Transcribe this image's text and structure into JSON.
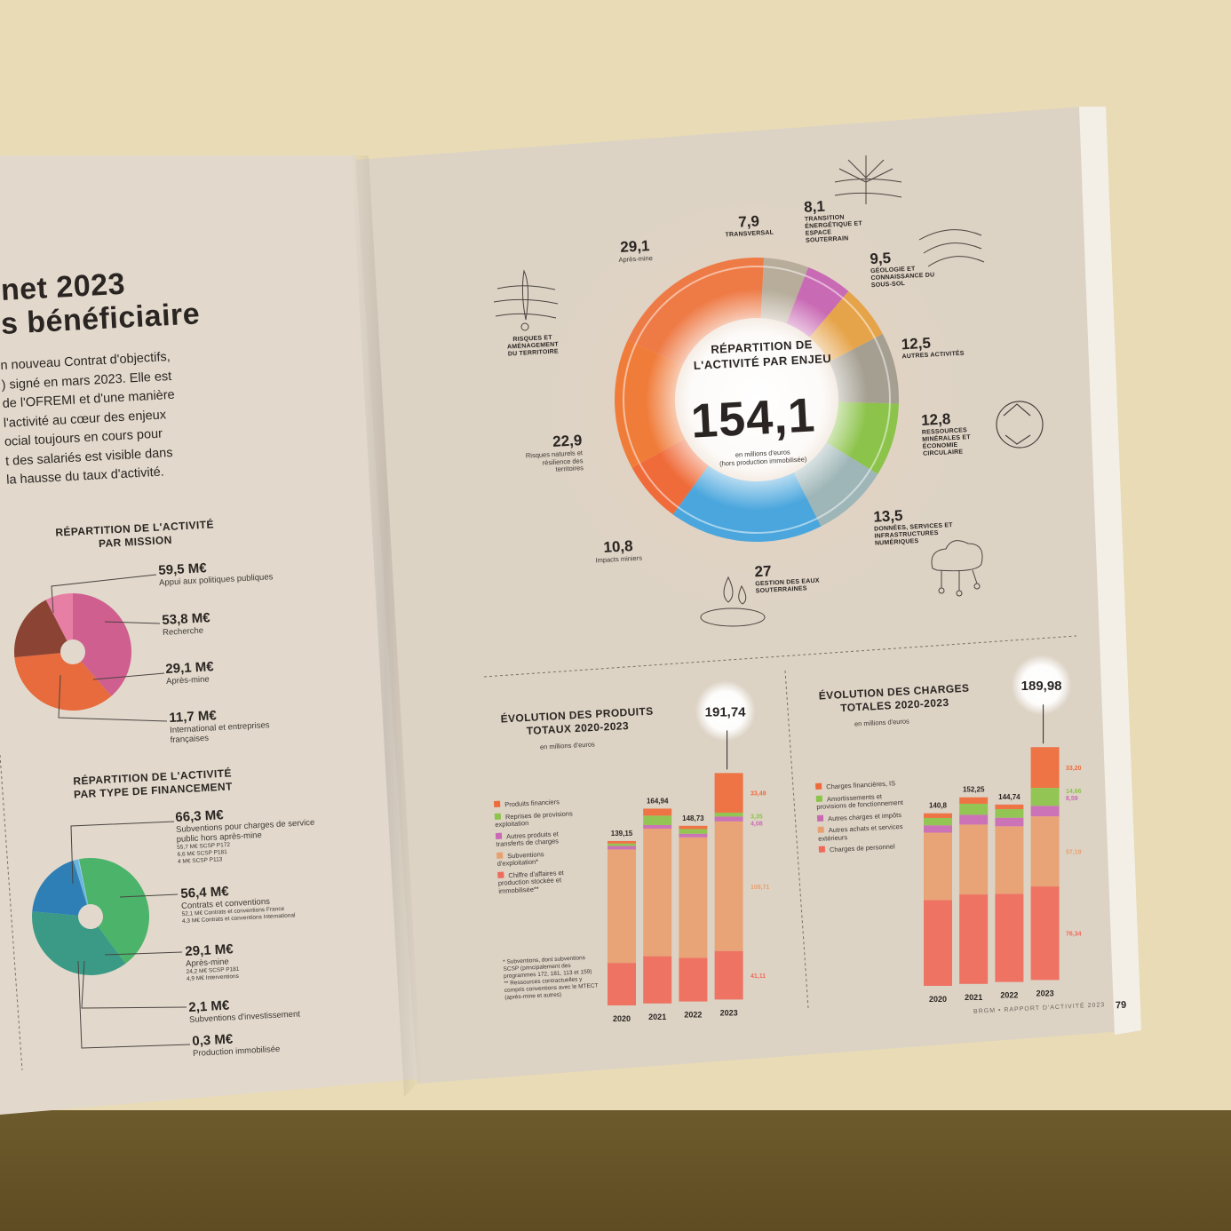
{
  "left_page": {
    "title_line1": "net 2023",
    "title_line2": "s bénéficiaire",
    "paragraph": [
      "n nouveau Contrat d'objectifs,",
      ") signé en mars 2023. Elle est",
      "de l'OFREMI et d'une manière",
      "l'activité au cœur des enjeux",
      "ocial toujours en cours pour",
      "t des salariés est visible dans",
      "la hausse du taux d'activité."
    ],
    "mission": {
      "title": "RÉPARTITION DE L'ACTIVITÉ PAR MISSION",
      "items": [
        {
          "value": "59,5 M€",
          "label": "Appui aux politiques publiques",
          "color": "#cf5f8e"
        },
        {
          "value": "53,8 M€",
          "label": "Recherche",
          "color": "#e76b3c"
        },
        {
          "value": "29,1 M€",
          "label": "Après-mine",
          "color": "#8b4434"
        },
        {
          "value": "11,7 M€",
          "label": "International et entreprises françaises",
          "color": "#e77fa5"
        }
      ]
    },
    "financement": {
      "title": "RÉPARTITION DE L'ACTIVITÉ PAR TYPE DE FINANCEMENT",
      "items": [
        {
          "value": "66,3 M€",
          "label": "Subventions pour charges de service public hors après-mine",
          "details": [
            "55,7 M€ SCSP P172",
            "6,6 M€ SCSP P181",
            "4 M€ SCSP P113"
          ],
          "color": "#4bb36a"
        },
        {
          "value": "56,4 M€",
          "label": "Contrats et conventions",
          "details": [
            "52,1 M€ Contrats et conventions France",
            "4,3 M€ Contrats et conventions International"
          ],
          "color": "#3a9a86"
        },
        {
          "value": "29,1 M€",
          "label": "Après-mine",
          "details": [
            "24,2 M€ SCSP P181",
            "4,9 M€ Interventions"
          ],
          "color": "#2e7fb5"
        },
        {
          "value": "2,1 M€",
          "label": "Subventions d'investissement",
          "details": [],
          "color": "#6ab6e0"
        },
        {
          "value": "0,3 M€",
          "label": "Production immobilisée",
          "details": [],
          "color": "#9fd2ee"
        }
      ]
    }
  },
  "right_page": {
    "donut_title": "RÉPARTITION DE L'ACTIVITÉ PAR ENJEU",
    "donut_total": "154,1",
    "donut_unit": "en millions d'euros",
    "donut_note": "(hors production immobilisée)",
    "segments": [
      {
        "value": "29,1",
        "label": "Après-mine",
        "color": "#ee7a45"
      },
      {
        "value": "7,9",
        "label": "TRANSVERSAL",
        "color": "#b8ad9b"
      },
      {
        "value": "8,1",
        "label": "TRANSITION ÉNERGÉTIQUE ET ESPACE SOUTERRAIN",
        "color": "#c96ab4"
      },
      {
        "value": "9,5",
        "label": "GÉOLOGIE ET CONNAISSANCE DU SOUS-SOL",
        "color": "#e6a44a"
      },
      {
        "value": "12,5",
        "label": "AUTRES ACTIVITÉS",
        "color": "#a59f91"
      },
      {
        "value": "12,8",
        "label": "RESSOURCES MINÉRALES ET ÉCONOMIE CIRCULAIRE",
        "color": "#8cc34a"
      },
      {
        "value": "13,5",
        "label": "DONNÉES, SERVICES ET INFRASTRUCTURES NUMÉRIQUES",
        "color": "#9fb6b8"
      },
      {
        "value": "27",
        "label": "GESTION DES EAUX SOUTERRAINES",
        "color": "#4aa6dd"
      },
      {
        "value": "10,8",
        "label": "Impacts miniers",
        "color": "#ef6b3a"
      },
      {
        "value": "22,9",
        "label": "Risques naturels et résilience des territoires",
        "color": "#f07c3a"
      },
      {
        "value": "",
        "label": "RISQUES ET AMÉNAGEMENT DU TERRITOIRE",
        "color": "#ee7a45"
      }
    ],
    "produits": {
      "title": "ÉVOLUTION DES PRODUITS TOTAUX 2020-2023",
      "unit": "en millions d'euros",
      "highlight": "191,74",
      "legend": [
        {
          "label": "Produits financiers",
          "color": "#ef6a3a"
        },
        {
          "label": "Reprises de provisions exploitation",
          "color": "#8cc34a"
        },
        {
          "label": "Autres produits et transferts de charges",
          "color": "#c96ab4"
        },
        {
          "label": "Subventions d'exploitation*",
          "color": "#e8a070"
        },
        {
          "label": "Chiffre d'affaires et production stockée et immobilisée**",
          "color": "#ef6a5a"
        }
      ],
      "notes": [
        "* Subventions, dont subventions SCSP (principalement des programmes 172, 181, 113 et 159)",
        "** Ressources contractuelles y compris conventions avec le MTECT (après-mine et autres)"
      ],
      "side_values": [
        "33,49",
        "3,35",
        "4,08",
        "109,71",
        "41,11"
      ]
    },
    "charges": {
      "title": "ÉVOLUTION DES CHARGES TOTALES 2020-2023",
      "unit": "en millions d'euros",
      "highlight": "189,98",
      "legend": [
        {
          "label": "Charges financières, IS",
          "color": "#ef6a3a"
        },
        {
          "label": "Amortissements et provisions de fonctionnement",
          "color": "#8cc34a"
        },
        {
          "label": "Autres charges et impôts",
          "color": "#c96ab4"
        },
        {
          "label": "Autres achats et services extérieurs",
          "color": "#e8a070"
        },
        {
          "label": "Charges de personnel",
          "color": "#ef6a5a"
        }
      ],
      "side_values": [
        "33,20",
        "14,66",
        "8,59",
        "57,19",
        "76,34"
      ]
    },
    "footer": "BRGM • RAPPORT D'ACTIVITÉ 2023",
    "page_number": "79"
  },
  "chart_data": [
    {
      "type": "pie",
      "title": "RÉPARTITION DE L'ACTIVITÉ PAR MISSION",
      "categories": [
        "Appui aux politiques publiques",
        "Recherche",
        "Après-mine",
        "International et entreprises françaises"
      ],
      "values": [
        59.5,
        53.8,
        29.1,
        11.7
      ]
    },
    {
      "type": "pie",
      "title": "RÉPARTITION DE L'ACTIVITÉ PAR TYPE DE FINANCEMENT",
      "categories": [
        "Subventions pour charges de service public hors après-mine",
        "Contrats et conventions",
        "Après-mine",
        "Subventions d'investissement",
        "Production immobilisée"
      ],
      "values": [
        66.3,
        56.4,
        29.1,
        2.1,
        0.3
      ]
    },
    {
      "type": "pie",
      "title": "RÉPARTITION DE L'ACTIVITÉ PAR ENJEU",
      "categories": [
        "Transversal",
        "Transition énergétique et espace souterrain",
        "Géologie et connaissance du sous-sol",
        "Autres activités",
        "Ressources minérales et économie circulaire",
        "Données, services et infrastructures numériques",
        "Gestion des eaux souterraines",
        "Impacts miniers",
        "Risques naturels et résilience des territoires",
        "Après-mine"
      ],
      "values": [
        7.9,
        8.1,
        9.5,
        12.5,
        12.8,
        13.5,
        27,
        10.8,
        22.9,
        29.1
      ]
    },
    {
      "type": "bar",
      "title": "ÉVOLUTION DES PRODUITS TOTAUX 2020-2023",
      "categories": [
        "2020",
        "2021",
        "2022",
        "2023"
      ],
      "totals": [
        139.15,
        164.94,
        148.73,
        191.74
      ],
      "series": [
        {
          "name": "Chiffre d'affaires et production stockée et immobilisée**",
          "values": [
            36,
            40,
            37,
            41.11
          ]
        },
        {
          "name": "Subventions d'exploitation*",
          "values": [
            96,
            108,
            102,
            109.71
          ]
        },
        {
          "name": "Autres produits et transferts de charges",
          "values": [
            3,
            3,
            3,
            4.08
          ]
        },
        {
          "name": "Reprises de provisions exploitation",
          "values": [
            2,
            8,
            4,
            3.35
          ]
        },
        {
          "name": "Produits financiers",
          "values": [
            2.15,
            5.94,
            2.73,
            33.49
          ]
        }
      ],
      "ylim": [
        0,
        200
      ]
    },
    {
      "type": "bar",
      "title": "ÉVOLUTION DES CHARGES TOTALES 2020-2023",
      "categories": [
        "2020",
        "2021",
        "2022",
        "2023"
      ],
      "totals": [
        140.8,
        152.25,
        144.74,
        189.98
      ],
      "series": [
        {
          "name": "Charges de personnel",
          "values": [
            70,
            73,
            72,
            76.34
          ]
        },
        {
          "name": "Autres achats et services extérieurs",
          "values": [
            55,
            57,
            55,
            57.19
          ]
        },
        {
          "name": "Autres charges et impôts",
          "values": [
            6,
            8,
            7,
            8.59
          ]
        },
        {
          "name": "Amortissements et provisions de fonctionnement",
          "values": [
            6,
            9,
            7,
            14.66
          ]
        },
        {
          "name": "Charges financières, IS",
          "values": [
            3.8,
            5.25,
            3.74,
            33.2
          ]
        }
      ],
      "ylim": [
        0,
        200
      ]
    }
  ]
}
